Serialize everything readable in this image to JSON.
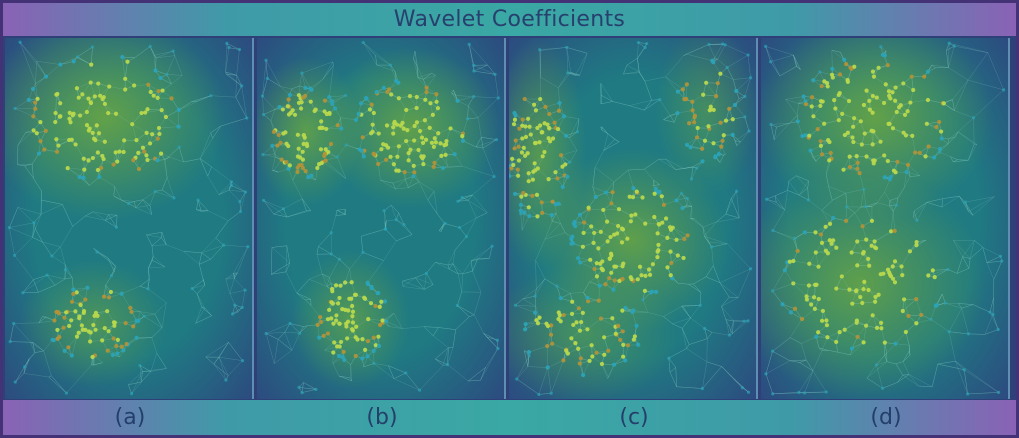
{
  "title": "Wavelet Coefficients",
  "panels": [
    {
      "label": "(a)",
      "blobs": [
        [
          0.4,
          0.22,
          0.33,
          0.18,
          1.0
        ],
        [
          0.36,
          0.79,
          0.2,
          0.11,
          0.7
        ]
      ]
    },
    {
      "label": "(b)",
      "blobs": [
        [
          0.2,
          0.26,
          0.15,
          0.13,
          0.9
        ],
        [
          0.62,
          0.25,
          0.24,
          0.14,
          0.95
        ],
        [
          0.38,
          0.78,
          0.16,
          0.12,
          0.8
        ]
      ]
    },
    {
      "label": "(c)",
      "blobs": [
        [
          0.12,
          0.32,
          0.13,
          0.2,
          0.8
        ],
        [
          0.5,
          0.56,
          0.26,
          0.16,
          0.95
        ],
        [
          0.3,
          0.82,
          0.26,
          0.12,
          0.6
        ],
        [
          0.8,
          0.2,
          0.14,
          0.15,
          0.55
        ]
      ]
    },
    {
      "label": "(d)",
      "blobs": [
        [
          0.46,
          0.22,
          0.32,
          0.18,
          1.0
        ],
        [
          0.4,
          0.68,
          0.34,
          0.2,
          0.95
        ]
      ]
    }
  ],
  "colors": {
    "base": "#1f7a82",
    "edge": "#2c4c80",
    "glow": "#6ea83e",
    "node_hi": "#b8d84c",
    "node_mid": "#b0923a",
    "node_lo": "#2ba3b7"
  }
}
